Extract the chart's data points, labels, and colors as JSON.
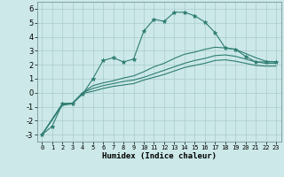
{
  "title": "",
  "xlabel": "Humidex (Indice chaleur)",
  "xlim": [
    -0.5,
    23.5
  ],
  "ylim": [
    -3.5,
    6.5
  ],
  "xticks": [
    0,
    1,
    2,
    3,
    4,
    5,
    6,
    7,
    8,
    9,
    10,
    11,
    12,
    13,
    14,
    15,
    16,
    17,
    18,
    19,
    20,
    21,
    22,
    23
  ],
  "yticks": [
    -3,
    -2,
    -1,
    0,
    1,
    2,
    3,
    4,
    5,
    6
  ],
  "bg_color": "#cce8e8",
  "line_color": "#2e7d72",
  "grid_color": "#aacccc",
  "line1_x": [
    0,
    1,
    2,
    3,
    4,
    5,
    6,
    7,
    8,
    9,
    10,
    11,
    12,
    13,
    14,
    15,
    16,
    17,
    18,
    19,
    20,
    21,
    22,
    23
  ],
  "line1_y": [
    -3.0,
    -2.4,
    -0.8,
    -0.75,
    -0.1,
    1.0,
    2.3,
    2.5,
    2.2,
    2.4,
    4.4,
    5.25,
    5.1,
    5.75,
    5.75,
    5.5,
    5.05,
    4.3,
    3.2,
    3.1,
    2.6,
    2.2,
    2.2,
    2.2
  ],
  "line2_x": [
    0,
    2,
    3,
    4,
    5,
    6,
    7,
    8,
    9,
    10,
    11,
    12,
    13,
    14,
    15,
    16,
    17,
    18,
    19,
    20,
    21,
    22,
    23
  ],
  "line2_y": [
    -3.0,
    -0.8,
    -0.75,
    0.0,
    0.5,
    0.7,
    0.85,
    1.05,
    1.2,
    1.5,
    1.85,
    2.1,
    2.45,
    2.75,
    2.9,
    3.1,
    3.25,
    3.2,
    3.1,
    2.8,
    2.5,
    2.25,
    2.2
  ],
  "line3_x": [
    0,
    2,
    3,
    4,
    5,
    6,
    7,
    8,
    9,
    10,
    11,
    12,
    13,
    14,
    15,
    16,
    17,
    18,
    19,
    20,
    21,
    22,
    23
  ],
  "line3_y": [
    -3.0,
    -0.8,
    -0.75,
    0.0,
    0.3,
    0.5,
    0.65,
    0.8,
    0.9,
    1.1,
    1.35,
    1.6,
    1.85,
    2.1,
    2.3,
    2.45,
    2.65,
    2.7,
    2.6,
    2.4,
    2.2,
    2.1,
    2.1
  ],
  "line4_x": [
    0,
    2,
    3,
    4,
    5,
    6,
    7,
    8,
    9,
    10,
    11,
    12,
    13,
    14,
    15,
    16,
    17,
    18,
    19,
    20,
    21,
    22,
    23
  ],
  "line4_y": [
    -3.0,
    -0.9,
    -0.8,
    -0.05,
    0.1,
    0.3,
    0.45,
    0.55,
    0.65,
    0.9,
    1.1,
    1.3,
    1.55,
    1.8,
    1.95,
    2.1,
    2.3,
    2.35,
    2.25,
    2.1,
    1.95,
    1.9,
    1.9
  ]
}
